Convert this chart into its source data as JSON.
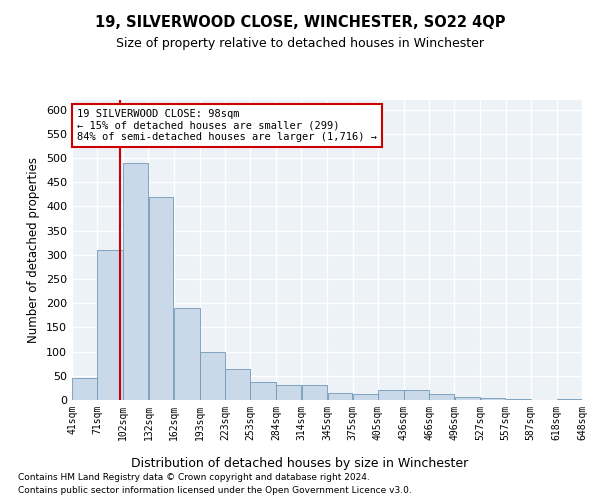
{
  "title": "19, SILVERWOOD CLOSE, WINCHESTER, SO22 4QP",
  "subtitle": "Size of property relative to detached houses in Winchester",
  "xlabel": "Distribution of detached houses by size in Winchester",
  "ylabel": "Number of detached properties",
  "bar_color": "#c9d9ea",
  "bar_edge_color": "#7098b8",
  "annotation_box_color": "#cc0000",
  "vline_color": "#cc0000",
  "background_color": "#edf2f7",
  "grid_color": "#ffffff",
  "footnote1": "Contains HM Land Registry data © Crown copyright and database right 2024.",
  "footnote2": "Contains public sector information licensed under the Open Government Licence v3.0.",
  "annotation_lines": [
    "19 SILVERWOOD CLOSE: 98sqm",
    "← 15% of detached houses are smaller (299)",
    "84% of semi-detached houses are larger (1,716) →"
  ],
  "property_size": 98,
  "bin_edges": [
    41,
    71,
    102,
    132,
    162,
    193,
    223,
    253,
    284,
    314,
    345,
    375,
    405,
    436,
    466,
    496,
    527,
    557,
    587,
    618,
    648
  ],
  "bin_labels": [
    "41sqm",
    "71sqm",
    "102sqm",
    "132sqm",
    "162sqm",
    "193sqm",
    "223sqm",
    "253sqm",
    "284sqm",
    "314sqm",
    "345sqm",
    "375sqm",
    "405sqm",
    "436sqm",
    "466sqm",
    "496sqm",
    "527sqm",
    "557sqm",
    "587sqm",
    "618sqm",
    "648sqm"
  ],
  "bar_heights": [
    45,
    310,
    490,
    420,
    190,
    100,
    65,
    38,
    30,
    30,
    15,
    12,
    20,
    20,
    12,
    7,
    4,
    3,
    1,
    3
  ],
  "ylim": [
    0,
    620
  ],
  "yticks": [
    0,
    50,
    100,
    150,
    200,
    250,
    300,
    350,
    400,
    450,
    500,
    550,
    600
  ]
}
